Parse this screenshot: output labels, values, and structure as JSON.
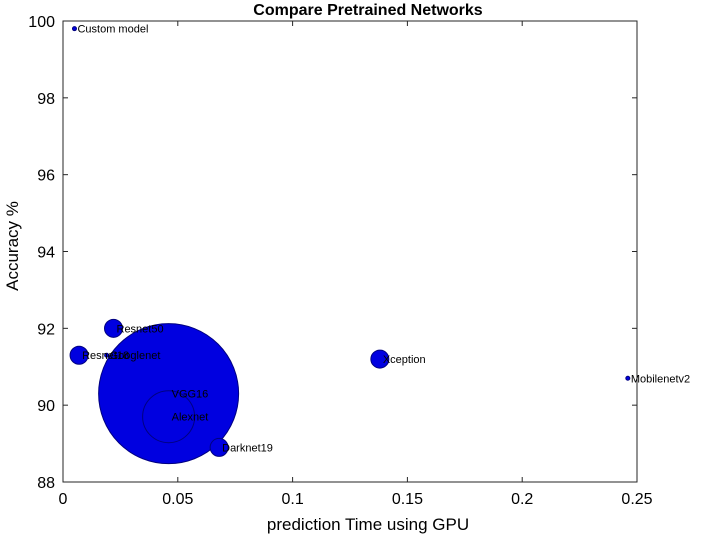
{
  "chart_data": {
    "type": "scatter",
    "title": "Compare Pretrained Networks",
    "xlabel": "prediction Time using GPU",
    "ylabel": "Accuracy %",
    "xlim": [
      0,
      0.25
    ],
    "ylim": [
      88,
      100
    ],
    "xticks": [
      0,
      0.05,
      0.1,
      0.15,
      0.2,
      0.25
    ],
    "xtick_labels": [
      "0",
      "0.05",
      "0.1",
      "0.15",
      "0.2",
      "0.25"
    ],
    "yticks": [
      88,
      90,
      92,
      94,
      96,
      98,
      100
    ],
    "ytick_labels": [
      "88",
      "90",
      "92",
      "94",
      "96",
      "98",
      "100"
    ],
    "grid": false,
    "marker_color": "#0000e0",
    "points": [
      {
        "label": "Custom model",
        "x": 0.005,
        "y": 99.8,
        "size": "tiny"
      },
      {
        "label": "Resnet50",
        "x": 0.022,
        "y": 92.0,
        "size": "small"
      },
      {
        "label": "Resnet18",
        "x": 0.007,
        "y": 91.3,
        "size": "small"
      },
      {
        "label": "Googlenet",
        "x": 0.019,
        "y": 91.3,
        "size": "tiny"
      },
      {
        "label": "VGG16",
        "x": 0.046,
        "y": 90.3,
        "size": "very large"
      },
      {
        "label": "Alexnet",
        "x": 0.046,
        "y": 89.7,
        "size": "medium"
      },
      {
        "label": "Darknet19",
        "x": 0.068,
        "y": 88.9,
        "size": "small"
      },
      {
        "label": "Xception",
        "x": 0.138,
        "y": 91.2,
        "size": "small"
      },
      {
        "label": "Mobilenetv2",
        "x": 0.246,
        "y": 90.7,
        "size": "tiny"
      }
    ]
  }
}
